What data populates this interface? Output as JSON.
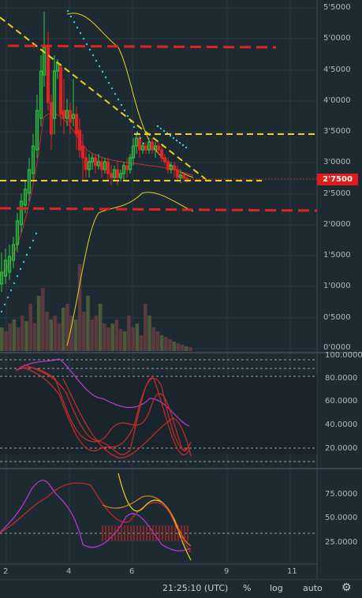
{
  "price_axis": {
    "labels": [
      "5'5000",
      "5'0000",
      "4'5000",
      "4'0000",
      "3'5000",
      "3'0000",
      "2'5000",
      "2'0000",
      "1'5000",
      "1'0000",
      "0'5000",
      "0'0000"
    ],
    "current": "2'7500"
  },
  "rsi_axis": {
    "labels": [
      "100.0000",
      "80.0000",
      "60.0000",
      "40.0000",
      "20.0000"
    ]
  },
  "osc_axis": {
    "labels": [
      "75.0000",
      "50.0000",
      "25.0000"
    ]
  },
  "time_axis": {
    "labels": [
      "2",
      "4",
      "6",
      "9",
      "11"
    ]
  },
  "bottom_bar": {
    "time": "21:25:10 (UTC)",
    "percent": "%",
    "log": "log",
    "auto": "auto"
  },
  "colors": {
    "background": "#1e2a32",
    "up": "#2ecc40",
    "down": "#e02424",
    "yellow": "#e6d51a",
    "cyan": "#3cc8e6",
    "magenta": "#c03ad6",
    "red_line": "#e02424"
  }
}
